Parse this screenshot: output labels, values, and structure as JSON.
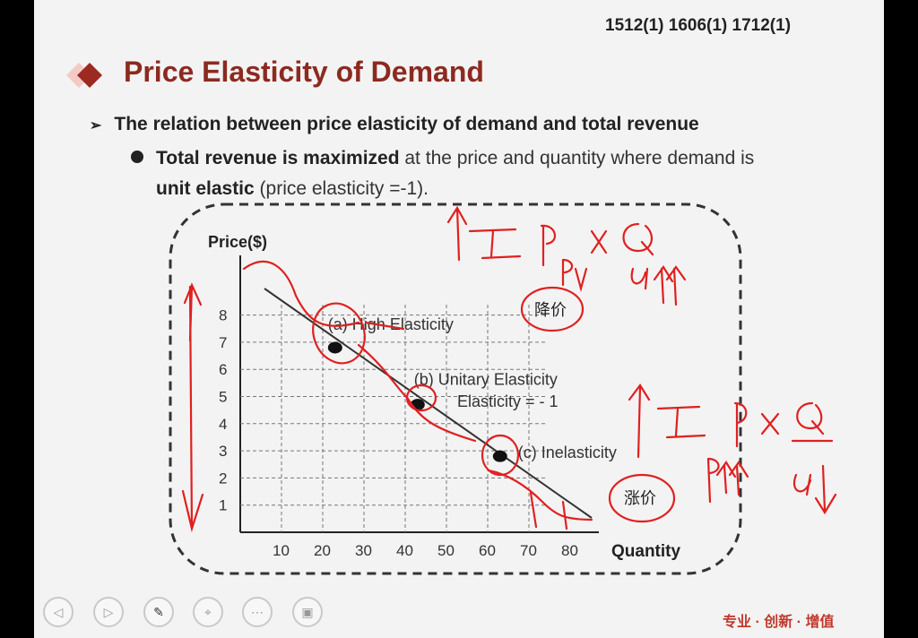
{
  "slide": {
    "exam_codes": "1512(1) 1606(1) 1712(1)",
    "title": "Price Elasticity of Demand",
    "bullet1": "The relation between price elasticity of demand and total revenue",
    "bullet2_bold": "Total revenue is maximized",
    "bullet2_rest": " at the price and quantity where demand is",
    "bullet2_line2_bold": "unit elastic",
    "bullet2_line2_rest": " (price elasticity =-1)."
  },
  "chart_data": {
    "type": "line",
    "ylabel": "Price($)",
    "xlabel": "Quantity",
    "y_ticks": [
      "8",
      "7",
      "6",
      "5",
      "4",
      "3",
      "2",
      "1"
    ],
    "x_ticks": [
      "10",
      "20",
      "30",
      "40",
      "50",
      "60",
      "70",
      "80"
    ],
    "points": [
      {
        "label": "(a) High Elasticity",
        "x": 23,
        "y": 6.8
      },
      {
        "label": "(b) Unitary Elasticity",
        "x": 43,
        "y": 4.7
      },
      {
        "label": "(c) Inelasticity",
        "x": 63,
        "y": 2.8
      }
    ],
    "unit_note": "Elasticity = - 1"
  },
  "annotations": {
    "tr1": "TR",
    "eq1": "= P × Q",
    "p1": "P↓",
    "q1": "Q↑↑",
    "cn1": "降价",
    "tr2": "TR",
    "eq2": "= P × Q",
    "p2": "P↑↑",
    "q2": "Q↓",
    "cn2": "涨价"
  },
  "footer": {
    "brand": "专业 · 创新 · 增值",
    "controls": [
      "prev-icon",
      "next-icon",
      "pen-icon",
      "pointer-icon",
      "menu-icon",
      "screen-icon"
    ]
  },
  "colors": {
    "title": "#8c2a20",
    "ink": "#e02020"
  }
}
